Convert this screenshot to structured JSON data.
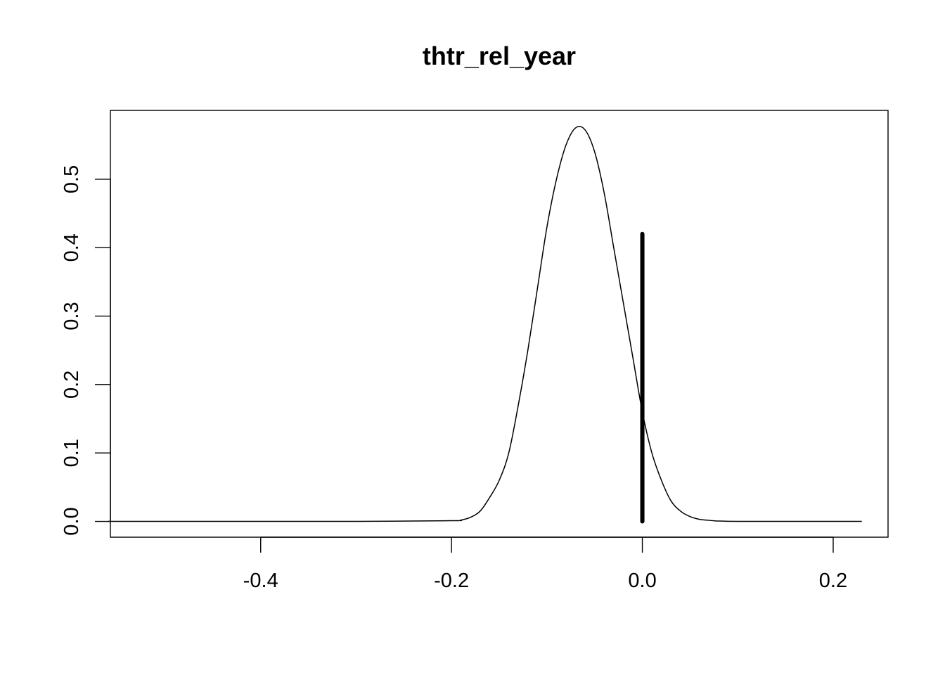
{
  "chart_data": {
    "type": "line",
    "title": "thtr_rel_year",
    "xlabel": "",
    "ylabel": "",
    "xlim": [
      -0.5575,
      0.2575
    ],
    "ylim": [
      -0.0231,
      0.6006
    ],
    "x_ticks": [
      -0.4,
      -0.2,
      0.0,
      0.2
    ],
    "x_tick_labels": [
      "-0.4",
      "-0.2",
      "0.0",
      "0.2"
    ],
    "y_ticks": [
      0.0,
      0.1,
      0.2,
      0.3,
      0.4,
      0.5
    ],
    "y_tick_labels": [
      "0.0",
      "0.1",
      "0.2",
      "0.3",
      "0.4",
      "0.5"
    ],
    "grid": false,
    "series": [
      {
        "x": [
          -0.56,
          -0.4,
          -0.3,
          -0.2,
          -0.19,
          -0.18,
          -0.17,
          -0.16,
          -0.15,
          -0.14,
          -0.13,
          -0.12,
          -0.11,
          -0.1,
          -0.09,
          -0.08,
          -0.07,
          -0.06,
          -0.05,
          -0.04,
          -0.03,
          -0.02,
          -0.01,
          0.0,
          0.01,
          0.02,
          0.03,
          0.04,
          0.05,
          0.06,
          0.07,
          0.08,
          0.1,
          0.15,
          0.23
        ],
        "y": [
          0.0,
          0.0,
          0.0,
          0.001,
          0.002,
          0.006,
          0.015,
          0.035,
          0.06,
          0.1,
          0.17,
          0.25,
          0.34,
          0.43,
          0.5,
          0.55,
          0.575,
          0.572,
          0.54,
          0.48,
          0.4,
          0.32,
          0.24,
          0.16,
          0.1,
          0.06,
          0.03,
          0.015,
          0.007,
          0.003,
          0.0015,
          0.0005,
          0.0,
          0.0,
          0.0
        ]
      }
    ],
    "reference_line": {
      "x": 0.0,
      "y_from": 0.0,
      "y_to": 0.42
    }
  }
}
